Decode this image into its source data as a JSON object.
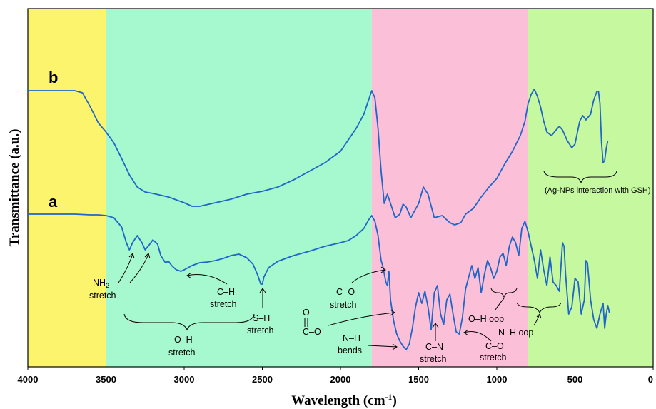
{
  "chart_data": {
    "type": "line",
    "xlabel": "Wavelength (cm",
    "xlabel_sup": "-1",
    "xlabel_end": ")",
    "ylabel": "Transmittance (a.u.)",
    "xlim": [
      4000,
      0
    ],
    "x_ticks": [
      "4000",
      "3500",
      "3000",
      "2500",
      "2000",
      "1500",
      "1000",
      "500",
      "0"
    ],
    "bands": [
      {
        "from": 4000,
        "to": 3500,
        "color": "#fdf46e"
      },
      {
        "from": 3500,
        "to": 1800,
        "color": "#a6f9ce"
      },
      {
        "from": 1800,
        "to": 800,
        "color": "#fcbfd8"
      },
      {
        "from": 800,
        "to": 0,
        "color": "#c6f99f"
      }
    ],
    "line_color": "#1f66c8",
    "series": [
      {
        "name": "b",
        "points": [
          [
            4000,
            127
          ],
          [
            3800,
            127
          ],
          [
            3700,
            127
          ],
          [
            3650,
            130
          ],
          [
            3600,
            150
          ],
          [
            3550,
            172
          ],
          [
            3500,
            185
          ],
          [
            3450,
            200
          ],
          [
            3400,
            222
          ],
          [
            3350,
            245
          ],
          [
            3300,
            262
          ],
          [
            3250,
            269
          ],
          [
            3200,
            271
          ],
          [
            3100,
            276
          ],
          [
            3000,
            284
          ],
          [
            2950,
            289
          ],
          [
            2900,
            289
          ],
          [
            2800,
            284
          ],
          [
            2700,
            279
          ],
          [
            2600,
            272
          ],
          [
            2500,
            268
          ],
          [
            2400,
            262
          ],
          [
            2300,
            252
          ],
          [
            2200,
            240
          ],
          [
            2100,
            228
          ],
          [
            2000,
            212
          ],
          [
            1900,
            180
          ],
          [
            1850,
            160
          ],
          [
            1820,
            140
          ],
          [
            1800,
            127
          ],
          [
            1780,
            137
          ],
          [
            1760,
            180
          ],
          [
            1740,
            240
          ],
          [
            1720,
            285
          ],
          [
            1700,
            272
          ],
          [
            1680,
            285
          ],
          [
            1650,
            305
          ],
          [
            1620,
            300
          ],
          [
            1600,
            286
          ],
          [
            1580,
            290
          ],
          [
            1550,
            305
          ],
          [
            1500,
            285
          ],
          [
            1470,
            262
          ],
          [
            1440,
            272
          ],
          [
            1400,
            305
          ],
          [
            1350,
            302
          ],
          [
            1300,
            312
          ],
          [
            1270,
            315
          ],
          [
            1230,
            312
          ],
          [
            1200,
            300
          ],
          [
            1150,
            292
          ],
          [
            1100,
            276
          ],
          [
            1050,
            262
          ],
          [
            1000,
            250
          ],
          [
            950,
            230
          ],
          [
            900,
            212
          ],
          [
            850,
            190
          ],
          [
            820,
            170
          ],
          [
            800,
            145
          ],
          [
            780,
            132
          ],
          [
            760,
            125
          ],
          [
            740,
            135
          ],
          [
            720,
            150
          ],
          [
            700,
            170
          ],
          [
            680,
            185
          ],
          [
            650,
            190
          ],
          [
            620,
            182
          ],
          [
            600,
            177
          ],
          [
            580,
            182
          ],
          [
            550,
            197
          ],
          [
            520,
            207
          ],
          [
            500,
            202
          ],
          [
            470,
            170
          ],
          [
            450,
            162
          ],
          [
            430,
            168
          ],
          [
            400,
            160
          ],
          [
            380,
            140
          ],
          [
            360,
            128
          ],
          [
            350,
            128
          ],
          [
            340,
            145
          ],
          [
            330,
            200
          ],
          [
            320,
            228
          ],
          [
            310,
            225
          ],
          [
            300,
            208
          ],
          [
            290,
            197
          ]
        ]
      },
      {
        "name": "a",
        "points": [
          [
            4000,
            300
          ],
          [
            3800,
            300
          ],
          [
            3700,
            300
          ],
          [
            3600,
            301
          ],
          [
            3550,
            301
          ],
          [
            3500,
            302
          ],
          [
            3450,
            305
          ],
          [
            3400,
            318
          ],
          [
            3370,
            340
          ],
          [
            3350,
            350
          ],
          [
            3330,
            340
          ],
          [
            3300,
            330
          ],
          [
            3270,
            340
          ],
          [
            3250,
            350
          ],
          [
            3230,
            345
          ],
          [
            3200,
            336
          ],
          [
            3170,
            342
          ],
          [
            3150,
            358
          ],
          [
            3120,
            368
          ],
          [
            3100,
            366
          ],
          [
            3080,
            372
          ],
          [
            3050,
            378
          ],
          [
            3020,
            380
          ],
          [
            3000,
            378
          ],
          [
            2950,
            372
          ],
          [
            2900,
            368
          ],
          [
            2850,
            367
          ],
          [
            2800,
            365
          ],
          [
            2750,
            362
          ],
          [
            2700,
            358
          ],
          [
            2650,
            356
          ],
          [
            2600,
            361
          ],
          [
            2560,
            370
          ],
          [
            2530,
            385
          ],
          [
            2510,
            398
          ],
          [
            2500,
            398
          ],
          [
            2490,
            388
          ],
          [
            2460,
            375
          ],
          [
            2400,
            366
          ],
          [
            2300,
            358
          ],
          [
            2200,
            352
          ],
          [
            2100,
            345
          ],
          [
            2000,
            340
          ],
          [
            1950,
            337
          ],
          [
            1900,
            330
          ],
          [
            1850,
            320
          ],
          [
            1820,
            308
          ],
          [
            1800,
            302
          ],
          [
            1780,
            310
          ],
          [
            1760,
            330
          ],
          [
            1740,
            365
          ],
          [
            1730,
            372
          ],
          [
            1710,
            395
          ],
          [
            1700,
            400
          ],
          [
            1690,
            380
          ],
          [
            1680,
            420
          ],
          [
            1660,
            450
          ],
          [
            1640,
            468
          ],
          [
            1620,
            478
          ],
          [
            1600,
            485
          ],
          [
            1580,
            490
          ],
          [
            1560,
            482
          ],
          [
            1540,
            460
          ],
          [
            1520,
            430
          ],
          [
            1500,
            410
          ],
          [
            1480,
            425
          ],
          [
            1460,
            408
          ],
          [
            1440,
            430
          ],
          [
            1420,
            462
          ],
          [
            1400,
            410
          ],
          [
            1380,
            400
          ],
          [
            1360,
            440
          ],
          [
            1340,
            455
          ],
          [
            1320,
            420
          ],
          [
            1300,
            412
          ],
          [
            1280,
            440
          ],
          [
            1260,
            465
          ],
          [
            1240,
            468
          ],
          [
            1220,
            445
          ],
          [
            1200,
            405
          ],
          [
            1180,
            388
          ],
          [
            1160,
            372
          ],
          [
            1140,
            390
          ],
          [
            1120,
            375
          ],
          [
            1100,
            410
          ],
          [
            1080,
            385
          ],
          [
            1060,
            365
          ],
          [
            1040,
            375
          ],
          [
            1020,
            390
          ],
          [
            1000,
            380
          ],
          [
            980,
            360
          ],
          [
            960,
            355
          ],
          [
            940,
            372
          ],
          [
            920,
            345
          ],
          [
            900,
            332
          ],
          [
            880,
            340
          ],
          [
            860,
            358
          ],
          [
            840,
            320
          ],
          [
            820,
            310
          ],
          [
            800,
            325
          ],
          [
            780,
            345
          ],
          [
            760,
            365
          ],
          [
            740,
            390
          ],
          [
            720,
            350
          ],
          [
            700,
            378
          ],
          [
            680,
            400
          ],
          [
            660,
            360
          ],
          [
            640,
            395
          ],
          [
            620,
            400
          ],
          [
            600,
            408
          ],
          [
            580,
            340
          ],
          [
            570,
            345
          ],
          [
            560,
            385
          ],
          [
            540,
            440
          ],
          [
            520,
            430
          ],
          [
            500,
            390
          ],
          [
            480,
            395
          ],
          [
            460,
            440
          ],
          [
            440,
            420
          ],
          [
            430,
            365
          ],
          [
            420,
            368
          ],
          [
            400,
            420
          ],
          [
            380,
            448
          ],
          [
            360,
            460
          ],
          [
            340,
            440
          ],
          [
            320,
            425
          ],
          [
            310,
            460
          ],
          [
            300,
            440
          ],
          [
            290,
            428
          ],
          [
            280,
            438
          ]
        ]
      }
    ]
  },
  "annotations": {
    "nh2_sym": "NH",
    "nh2_sub": "2",
    "nh2_stretch": "stretch",
    "ch_label": "C–H",
    "ch_stretch": "stretch",
    "oh_label": "O–H",
    "oh_stretch": "stretch",
    "sh_label": "S–H",
    "sh_stretch": "stretch",
    "co_double_label": "C=O",
    "co_double_stretch": "stretch",
    "carboxylate_o_top": "O",
    "carboxylate_c": "C–O",
    "carboxylate_minus": "−",
    "nh_bends_label": "N–H",
    "nh_bends_text": "bends",
    "cn_label": "C–N",
    "cn_stretch": "stretch",
    "co_label": "C–O",
    "co_stretch": "stretch",
    "oh_oop": "O–H oop",
    "nh_oop": "N–H oop",
    "ag_np": "(Ag-NPs interaction with GSH)"
  }
}
